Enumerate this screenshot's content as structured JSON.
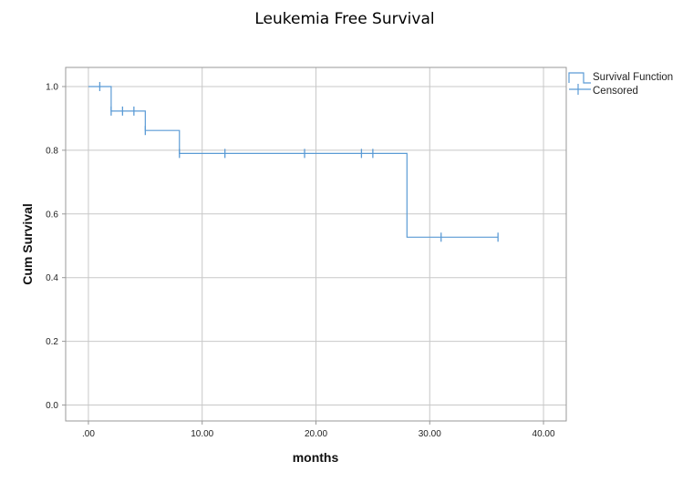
{
  "chart_data": {
    "type": "line",
    "subtype": "kaplan-meier-step",
    "title": "Leukemia Free Survival",
    "xlabel": "months",
    "ylabel": "Cum Survival",
    "xlim": [
      -2,
      42
    ],
    "ylim": [
      -0.05,
      1.06
    ],
    "xticks": [
      0,
      10,
      20,
      30,
      40
    ],
    "xtick_labels": [
      ".00",
      "10.00",
      "20.00",
      "30.00",
      "40.00"
    ],
    "yticks": [
      0.0,
      0.2,
      0.4,
      0.6,
      0.8,
      1.0
    ],
    "ytick_labels": [
      "0.0",
      "0.2",
      "0.4",
      "0.6",
      "0.8",
      "1.0"
    ],
    "grid": true,
    "legend_position": "top-right",
    "line_color": "#5b9bd5",
    "survival_function": {
      "name": "Survival Function",
      "steps": [
        {
          "x": 0,
          "y": 1.0
        },
        {
          "x": 2,
          "y": 0.923
        },
        {
          "x": 5,
          "y": 0.862
        },
        {
          "x": 8,
          "y": 0.79
        },
        {
          "x": 28,
          "y": 0.527
        },
        {
          "x": 36,
          "y": 0.527
        }
      ]
    },
    "censored": {
      "name": "Censored",
      "points": [
        {
          "x": 1,
          "y": 1.0
        },
        {
          "x": 2,
          "y": 0.923
        },
        {
          "x": 3,
          "y": 0.923
        },
        {
          "x": 4,
          "y": 0.923
        },
        {
          "x": 5,
          "y": 0.862
        },
        {
          "x": 8,
          "y": 0.79
        },
        {
          "x": 12,
          "y": 0.79
        },
        {
          "x": 19,
          "y": 0.79
        },
        {
          "x": 24,
          "y": 0.79
        },
        {
          "x": 25,
          "y": 0.79
        },
        {
          "x": 31,
          "y": 0.527
        },
        {
          "x": 36,
          "y": 0.527
        }
      ]
    }
  }
}
